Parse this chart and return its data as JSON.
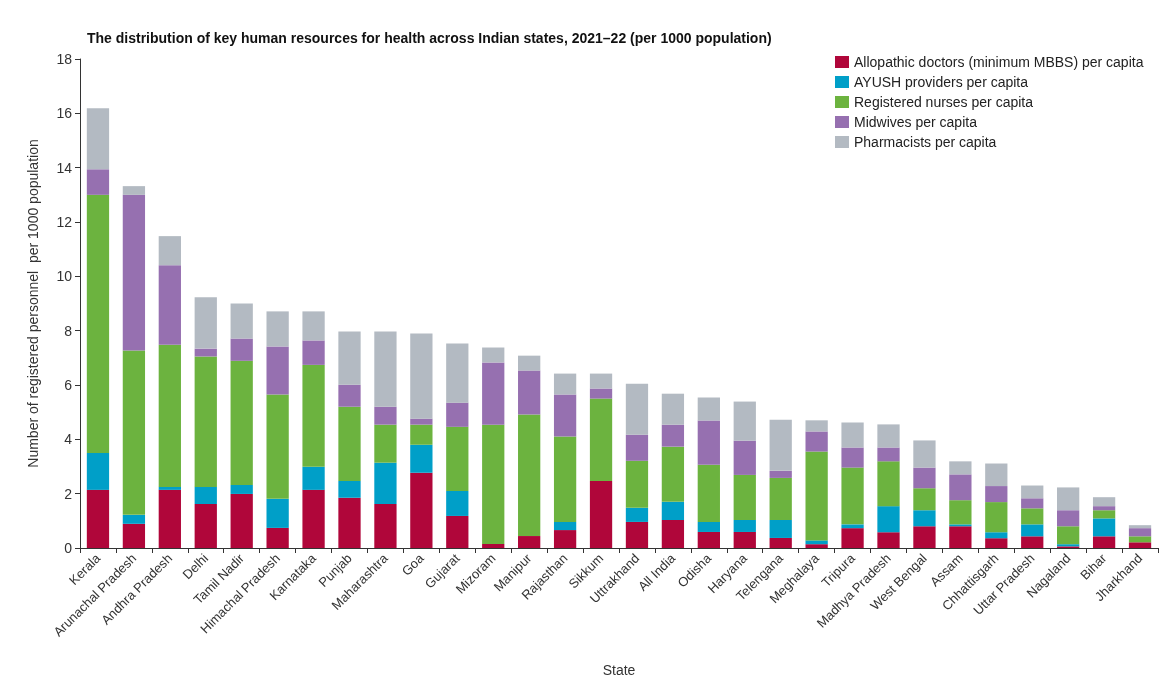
{
  "chart_data": {
    "type": "bar",
    "stacked": true,
    "title": "The distribution of key human resources for health across Indian states, 2021–22 (per 1000 population)",
    "xlabel": "State",
    "ylabel": "Number of registered personnel  per 1000 population",
    "categories": [
      "Kerala",
      "Arunachal Pradesh",
      "Andhra Pradesh",
      "Delhi",
      "Tamil Nadir",
      "Himachal Pradesh",
      "Karnataka",
      "Punjab",
      "Maharashtra",
      "Goa",
      "Gujarat",
      "Mizoram",
      "Manipur",
      "Rajasthan",
      "Sikkum",
      "Uttrakhand",
      "All India",
      "Odisha",
      "Haryana",
      "Telengana",
      "Meghalaya",
      "Tripura",
      "Madhya Pradesh",
      "West Bengal",
      "Assam",
      "Chhattisgarh",
      "Uttar Pradesh",
      "Nagaland",
      "Bihar",
      "Jharkhand"
    ],
    "series": [
      {
        "name": "Allopathic doctors (minimum MBBS) per capita",
        "color": "#b0063a",
        "values": [
          2.14,
          0.89,
          2.14,
          1.62,
          1.99,
          0.74,
          2.14,
          1.85,
          1.62,
          2.77,
          1.18,
          0.15,
          0.44,
          0.66,
          2.47,
          0.96,
          1.03,
          0.59,
          0.59,
          0.37,
          0.14,
          0.73,
          0.58,
          0.8,
          0.8,
          0.36,
          0.43,
          0.06,
          0.43,
          0.21
        ]
      },
      {
        "name": "AYUSH providers per capita",
        "color": "#009fc8",
        "values": [
          1.36,
          0.33,
          0.11,
          0.63,
          0.33,
          1.07,
          0.85,
          0.62,
          1.52,
          1.03,
          0.92,
          0,
          0,
          0.3,
          0,
          0.52,
          0.67,
          0.37,
          0.44,
          0.66,
          0.14,
          0.14,
          0.96,
          0.59,
          0.07,
          0.22,
          0.44,
          0.08,
          0.66,
          0
        ]
      },
      {
        "name": "Registered nurses per capita",
        "color": "#6cb33f",
        "values": [
          9.5,
          6.05,
          5.23,
          4.8,
          4.57,
          3.84,
          3.75,
          2.73,
          1.4,
          0.74,
          2.36,
          4.39,
          4.47,
          3.14,
          3.03,
          1.73,
          2.03,
          2.1,
          1.66,
          1.55,
          3.27,
          2.09,
          1.65,
          0.81,
          0.89,
          1.11,
          0.59,
          0.66,
          0.3,
          0.22
        ]
      },
      {
        "name": "Midwives per capita",
        "color": "#9670b0",
        "values": [
          0.94,
          5.73,
          2.93,
          0.29,
          0.82,
          1.77,
          0.9,
          0.81,
          0.66,
          0.22,
          0.89,
          2.29,
          1.62,
          1.55,
          0.37,
          0.96,
          0.81,
          1.63,
          1.26,
          0.26,
          0.74,
          0.74,
          0.51,
          0.76,
          0.95,
          0.59,
          0.37,
          0.59,
          0.15,
          0.3
        ]
      },
      {
        "name": "Pharmacists per capita",
        "color": "#b3bac2",
        "values": [
          2.25,
          0.32,
          1.07,
          1.89,
          1.29,
          1.29,
          1.07,
          1.96,
          2.77,
          3.14,
          2.18,
          0.55,
          0.55,
          0.77,
          0.55,
          1.88,
          1.14,
          0.85,
          1.44,
          1.88,
          0.41,
          0.92,
          0.85,
          1.0,
          0.48,
          0.83,
          0.47,
          0.84,
          0.33,
          0.11
        ]
      }
    ],
    "ylim": [
      0,
      18
    ],
    "yticks": [
      0,
      2,
      4,
      6,
      8,
      10,
      12,
      14,
      16,
      18
    ],
    "grid": false,
    "legend": "top right"
  }
}
